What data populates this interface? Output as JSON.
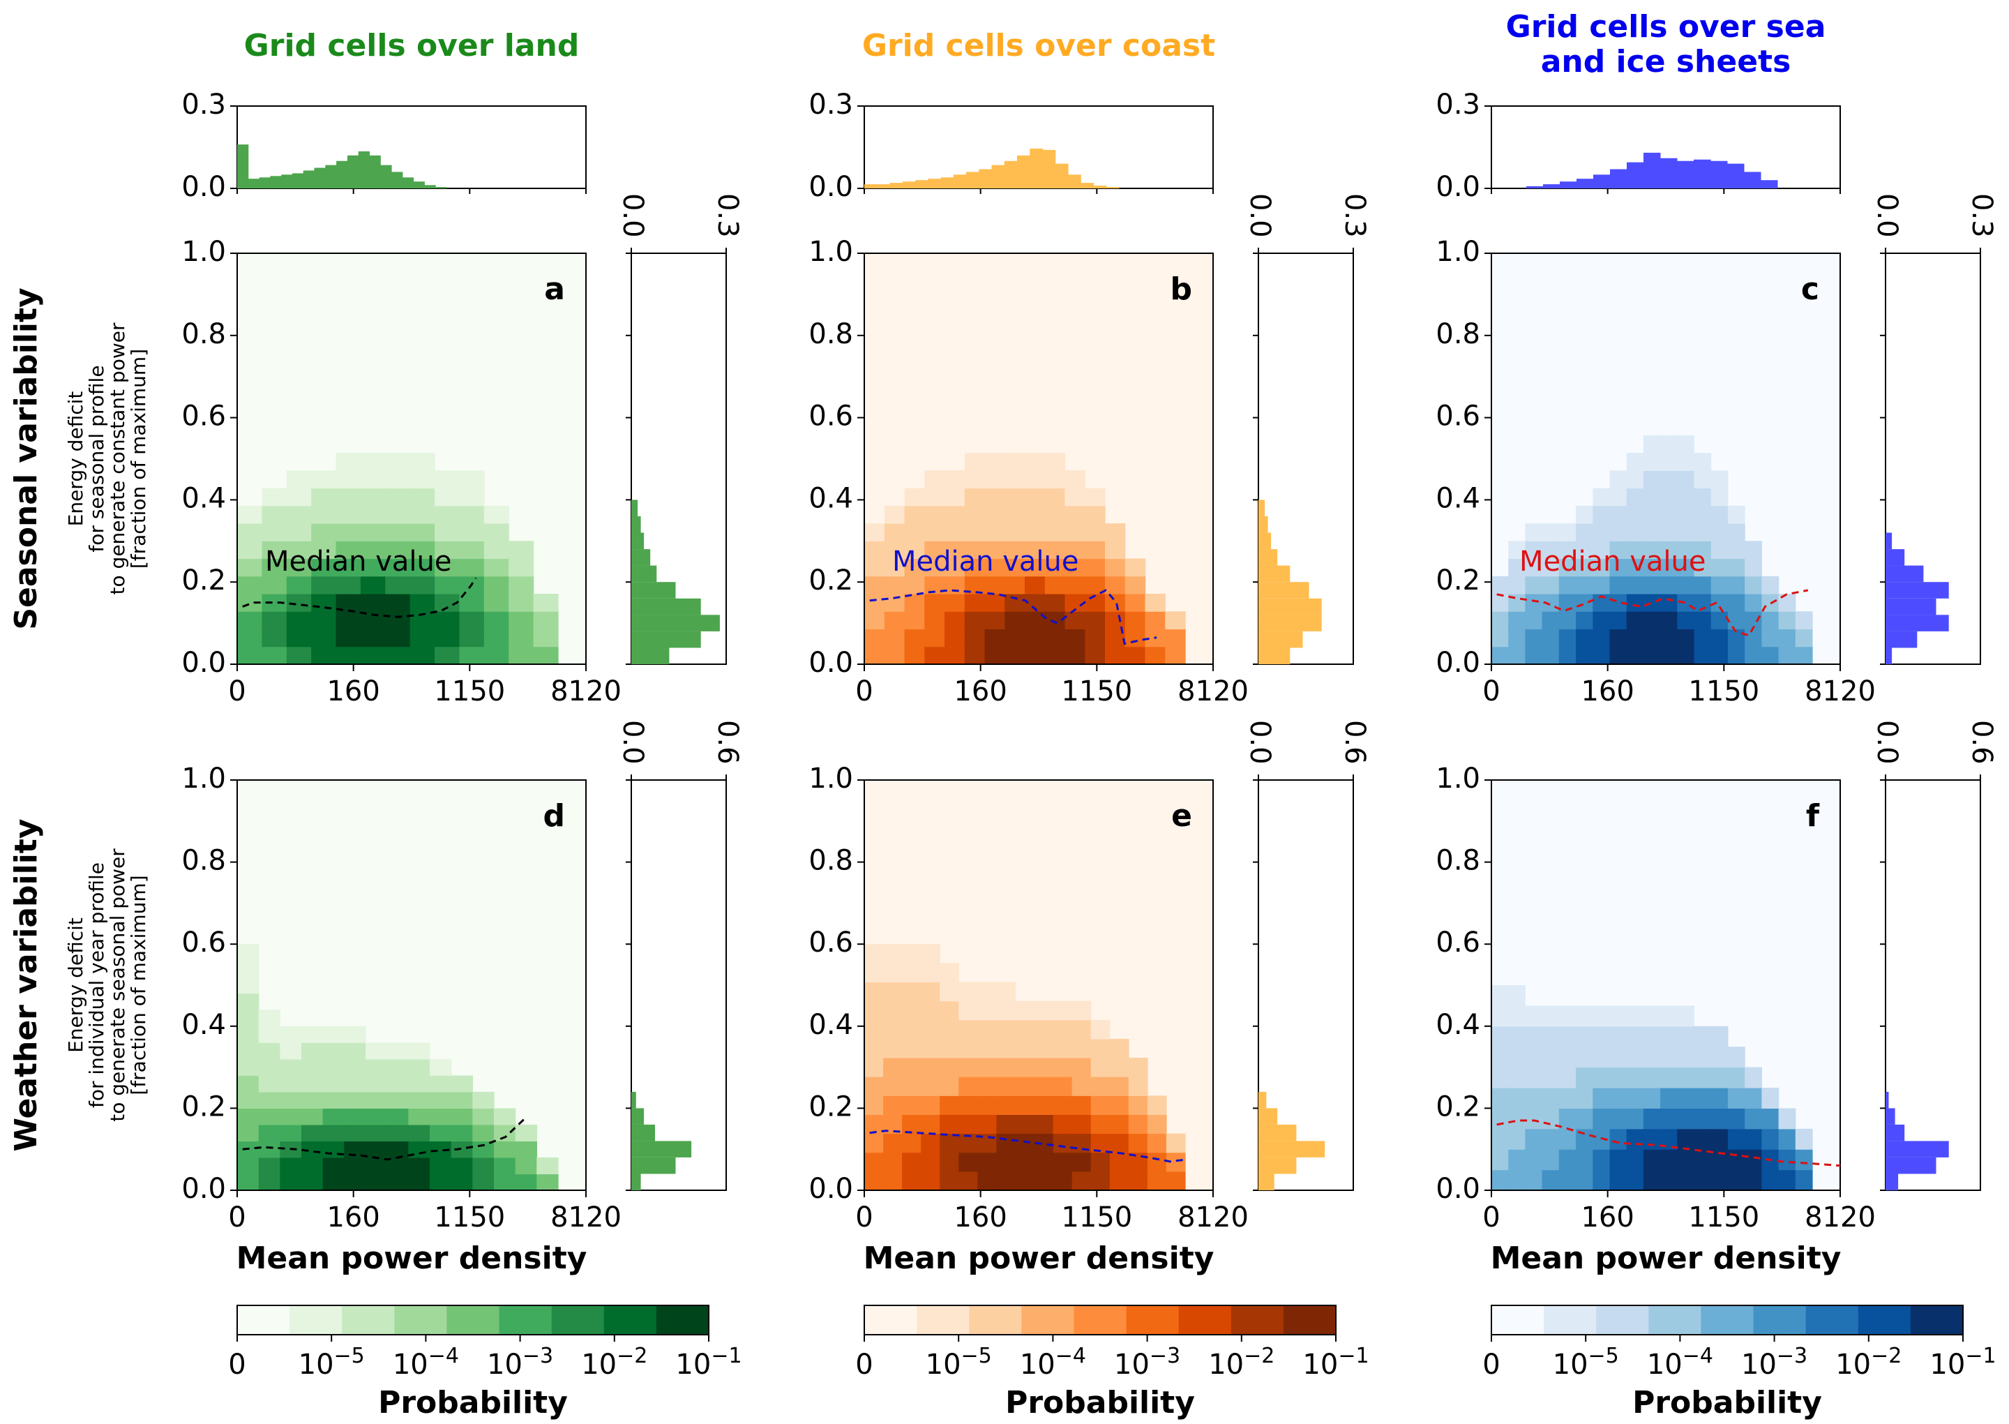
{
  "chart_data": {
    "type": "heatmap",
    "column_titles": [
      {
        "lines": [
          "Grid cells over land"
        ],
        "color": "#1a8a1a"
      },
      {
        "lines": [
          "Grid cells over coast"
        ],
        "color": "#ffaa22"
      },
      {
        "lines": [
          "Grid cells over sea",
          "and ice sheets"
        ],
        "color": "#0000ee"
      }
    ],
    "row_titles": [
      "Seasonal variability",
      "Weather variability"
    ],
    "row_ylabels": [
      [
        "Energy deficit",
        "for seasonal profile",
        "to generate constant power",
        "[fraction of maximum]"
      ],
      [
        "Energy deficit",
        "for individual year profile",
        "to generate seasonal power",
        "[fraction of maximum]"
      ]
    ],
    "xlabel": "Mean power density",
    "x_ticks": [
      "0",
      "160",
      "1150",
      "8120"
    ],
    "y_ticks": [
      "0.0",
      "0.2",
      "0.4",
      "0.6",
      "0.8",
      "1.0"
    ],
    "ylim": [
      0,
      1
    ],
    "top_hist_ticks": [
      "0.0",
      "0.3"
    ],
    "side_hist_ticks": [
      [
        "0.0",
        "0.3"
      ],
      [
        "0.0",
        "0.6"
      ]
    ],
    "panel_labels": [
      "a",
      "b",
      "c",
      "d",
      "e",
      "f"
    ],
    "median_label": "Median value",
    "colorbar": {
      "label": "Probability",
      "tick_labels": [
        {
          "base": "0",
          "exp": ""
        },
        {
          "base": "10",
          "exp": "−5"
        },
        {
          "base": "10",
          "exp": "−4"
        },
        {
          "base": "10",
          "exp": "−3"
        },
        {
          "base": "10",
          "exp": "−2"
        },
        {
          "base": "10",
          "exp": "−1"
        }
      ],
      "palettes": [
        [
          "#f7fcf5",
          "#e5f5e0",
          "#c7e9c0",
          "#a1d99b",
          "#74c476",
          "#41ab5d",
          "#238b45",
          "#006d2c",
          "#00441b"
        ],
        [
          "#fff5eb",
          "#fee6ce",
          "#fdd0a2",
          "#fdae6b",
          "#fd8d3c",
          "#f16913",
          "#d94801",
          "#a63603",
          "#7f2704"
        ],
        [
          "#f7fbff",
          "#deebf7",
          "#c6dbef",
          "#9ecae1",
          "#6baed6",
          "#4292c6",
          "#2171b5",
          "#08519c",
          "#08306b"
        ]
      ]
    },
    "hist_colors": [
      "#4da54d",
      "#ffbd4f",
      "#4d4dff"
    ],
    "median_colors": [
      "#000000",
      "#1010cc",
      "#dd1111"
    ],
    "top_histograms": [
      [
        0.16,
        0.035,
        0.04,
        0.045,
        0.05,
        0.055,
        0.065,
        0.075,
        0.085,
        0.1,
        0.12,
        0.135,
        0.12,
        0.085,
        0.06,
        0.04,
        0.025,
        0.012,
        0.005
      ],
      [
        0.015,
        0.015,
        0.02,
        0.025,
        0.03,
        0.035,
        0.04,
        0.05,
        0.06,
        0.07,
        0.085,
        0.1,
        0.12,
        0.145,
        0.14,
        0.09,
        0.05,
        0.02,
        0.01,
        0.005
      ],
      [
        0.008,
        0.015,
        0.025,
        0.035,
        0.05,
        0.07,
        0.095,
        0.13,
        0.11,
        0.1,
        0.105,
        0.1,
        0.09,
        0.06,
        0.03
      ]
    ],
    "side_histograms": [
      [
        [
          [
            0.0,
            0.04,
            0.12
          ],
          [
            0.04,
            0.08,
            0.22
          ],
          [
            0.08,
            0.12,
            0.28
          ],
          [
            0.12,
            0.16,
            0.22
          ],
          [
            0.16,
            0.2,
            0.14
          ],
          [
            0.2,
            0.24,
            0.08
          ],
          [
            0.24,
            0.28,
            0.06
          ],
          [
            0.28,
            0.32,
            0.04
          ],
          [
            0.32,
            0.36,
            0.03
          ],
          [
            0.36,
            0.4,
            0.02
          ]
        ],
        [
          [
            0.0,
            0.04,
            0.1
          ],
          [
            0.04,
            0.08,
            0.14
          ],
          [
            0.08,
            0.12,
            0.2
          ],
          [
            0.12,
            0.16,
            0.2
          ],
          [
            0.16,
            0.2,
            0.16
          ],
          [
            0.2,
            0.24,
            0.1
          ],
          [
            0.24,
            0.28,
            0.06
          ],
          [
            0.28,
            0.32,
            0.04
          ],
          [
            0.32,
            0.36,
            0.03
          ],
          [
            0.36,
            0.4,
            0.02
          ]
        ],
        [
          [
            0.0,
            0.04,
            0.02
          ],
          [
            0.04,
            0.08,
            0.1
          ],
          [
            0.08,
            0.12,
            0.2
          ],
          [
            0.12,
            0.16,
            0.16
          ],
          [
            0.16,
            0.2,
            0.2
          ],
          [
            0.2,
            0.24,
            0.12
          ],
          [
            0.24,
            0.28,
            0.06
          ],
          [
            0.28,
            0.32,
            0.02
          ]
        ]
      ],
      [
        [
          [
            0.0,
            0.04,
            0.06
          ],
          [
            0.04,
            0.08,
            0.28
          ],
          [
            0.08,
            0.12,
            0.38
          ],
          [
            0.12,
            0.16,
            0.15
          ],
          [
            0.16,
            0.2,
            0.08
          ],
          [
            0.2,
            0.24,
            0.03
          ]
        ],
        [
          [
            0.0,
            0.04,
            0.1
          ],
          [
            0.04,
            0.08,
            0.24
          ],
          [
            0.08,
            0.12,
            0.42
          ],
          [
            0.12,
            0.16,
            0.24
          ],
          [
            0.16,
            0.2,
            0.12
          ],
          [
            0.2,
            0.24,
            0.05
          ]
        ],
        [
          [
            0.0,
            0.04,
            0.08
          ],
          [
            0.04,
            0.08,
            0.32
          ],
          [
            0.08,
            0.12,
            0.4
          ],
          [
            0.12,
            0.16,
            0.12
          ],
          [
            0.16,
            0.2,
            0.06
          ],
          [
            0.2,
            0.24,
            0.02
          ]
        ]
      ]
    ],
    "medians": [
      [
        [
          [
            0.1,
            0.14
          ],
          [
            0.3,
            0.15
          ],
          [
            0.8,
            0.15
          ],
          [
            1.5,
            0.14
          ],
          [
            2.1,
            0.13
          ],
          [
            2.55,
            0.12
          ],
          [
            3.0,
            0.115
          ],
          [
            3.4,
            0.12
          ],
          [
            3.8,
            0.13
          ],
          [
            4.1,
            0.15
          ],
          [
            4.35,
            0.19
          ],
          [
            4.45,
            0.21
          ]
        ],
        [
          [
            0.1,
            0.155
          ],
          [
            0.5,
            0.16
          ],
          [
            1.2,
            0.175
          ],
          [
            1.6,
            0.18
          ],
          [
            2.1,
            0.175
          ],
          [
            2.5,
            0.17
          ],
          [
            3.0,
            0.155
          ],
          [
            3.4,
            0.11
          ],
          [
            3.6,
            0.1
          ],
          [
            3.9,
            0.13
          ],
          [
            4.2,
            0.16
          ],
          [
            4.5,
            0.18
          ],
          [
            4.7,
            0.15
          ],
          [
            4.85,
            0.05
          ],
          [
            5.2,
            0.06
          ],
          [
            5.45,
            0.065
          ]
        ],
        [
          [
            0.1,
            0.17
          ],
          [
            0.5,
            0.16
          ],
          [
            1.0,
            0.15
          ],
          [
            1.35,
            0.13
          ],
          [
            1.7,
            0.145
          ],
          [
            2.05,
            0.165
          ],
          [
            2.4,
            0.15
          ],
          [
            2.8,
            0.14
          ],
          [
            3.2,
            0.16
          ],
          [
            3.6,
            0.15
          ],
          [
            3.85,
            0.13
          ],
          [
            4.2,
            0.15
          ],
          [
            4.55,
            0.08
          ],
          [
            4.8,
            0.07
          ],
          [
            5.1,
            0.14
          ],
          [
            5.5,
            0.17
          ],
          [
            5.9,
            0.18
          ]
        ]
      ],
      [
        [
          [
            0.1,
            0.1
          ],
          [
            0.5,
            0.105
          ],
          [
            1.1,
            0.1
          ],
          [
            1.7,
            0.09
          ],
          [
            2.3,
            0.085
          ],
          [
            2.8,
            0.075
          ],
          [
            3.2,
            0.085
          ],
          [
            3.6,
            0.095
          ],
          [
            4.1,
            0.1
          ],
          [
            4.6,
            0.11
          ],
          [
            5.0,
            0.13
          ],
          [
            5.4,
            0.18
          ]
        ],
        [
          [
            0.1,
            0.14
          ],
          [
            0.4,
            0.145
          ],
          [
            1.0,
            0.14
          ],
          [
            1.6,
            0.135
          ],
          [
            2.3,
            0.13
          ],
          [
            2.9,
            0.12
          ],
          [
            3.5,
            0.11
          ],
          [
            4.1,
            0.1
          ],
          [
            4.8,
            0.09
          ],
          [
            5.3,
            0.08
          ],
          [
            5.7,
            0.07
          ],
          [
            6.0,
            0.075
          ]
        ],
        [
          [
            0.1,
            0.16
          ],
          [
            0.5,
            0.17
          ],
          [
            0.8,
            0.17
          ],
          [
            1.3,
            0.155
          ],
          [
            1.8,
            0.135
          ],
          [
            2.4,
            0.115
          ],
          [
            3.1,
            0.11
          ],
          [
            3.7,
            0.1
          ],
          [
            4.3,
            0.09
          ],
          [
            4.9,
            0.08
          ],
          [
            5.4,
            0.07
          ],
          [
            6.0,
            0.065
          ],
          [
            6.5,
            0.06
          ]
        ]
      ]
    ],
    "heatmap_regions": [
      [
        {
          "x_bins": 13,
          "y_bins": 14,
          "peak_x": 5,
          "peak_y": 2,
          "sx": 3.5,
          "sy": 2.6,
          "boundary": [
            [
              0,
              9
            ],
            [
              1,
              10
            ],
            [
              2,
              11
            ],
            [
              3,
              11
            ],
            [
              4,
              12
            ],
            [
              5,
              12
            ],
            [
              6,
              12
            ],
            [
              7,
              12
            ],
            [
              8,
              11
            ],
            [
              9,
              11
            ],
            [
              10,
              9
            ],
            [
              11,
              7
            ],
            [
              12,
              4
            ]
          ]
        },
        {
          "x_bins": 16,
          "y_bins": 14,
          "peak_x": 8,
          "peak_y": 1,
          "sx": 4.0,
          "sy": 2.8,
          "boundary": [
            [
              0,
              8
            ],
            [
              1,
              9
            ],
            [
              2,
              10
            ],
            [
              3,
              11
            ],
            [
              4,
              11
            ],
            [
              5,
              12
            ],
            [
              6,
              12
            ],
            [
              7,
              12
            ],
            [
              8,
              12
            ],
            [
              9,
              12
            ],
            [
              10,
              11
            ],
            [
              11,
              10
            ],
            [
              12,
              8
            ],
            [
              13,
              6
            ],
            [
              14,
              4
            ],
            [
              15,
              3
            ]
          ]
        },
        {
          "x_bins": 19,
          "y_bins": 14,
          "peak_x": 9,
          "peak_y": 1,
          "sx": 4.5,
          "sy": 2.5,
          "boundary": [
            [
              0,
              5
            ],
            [
              1,
              7
            ],
            [
              2,
              8
            ],
            [
              3,
              8
            ],
            [
              4,
              8
            ],
            [
              5,
              9
            ],
            [
              6,
              10
            ],
            [
              7,
              11
            ],
            [
              8,
              12
            ],
            [
              9,
              13
            ],
            [
              10,
              13
            ],
            [
              11,
              13
            ],
            [
              12,
              12
            ],
            [
              13,
              11
            ],
            [
              14,
              9
            ],
            [
              15,
              7
            ],
            [
              16,
              5
            ],
            [
              17,
              4
            ],
            [
              18,
              3
            ]
          ]
        }
      ],
      [
        {
          "x_bins": 15,
          "y_bins": 15,
          "peak_x": 6,
          "peak_y": 1,
          "sx": 4.5,
          "sy": 2.4,
          "boundary": [
            [
              0,
              15
            ],
            [
              1,
              11
            ],
            [
              2,
              10
            ],
            [
              3,
              10
            ],
            [
              4,
              10
            ],
            [
              5,
              10
            ],
            [
              6,
              9
            ],
            [
              7,
              9
            ],
            [
              8,
              9
            ],
            [
              9,
              8
            ],
            [
              10,
              7
            ],
            [
              11,
              6
            ],
            [
              12,
              5
            ],
            [
              13,
              4
            ],
            [
              14,
              2
            ]
          ]
        },
        {
          "x_bins": 17,
          "y_bins": 13,
          "peak_x": 8,
          "peak_y": 1,
          "sx": 5.0,
          "sy": 2.6,
          "boundary": [
            [
              0,
              13
            ],
            [
              1,
              13
            ],
            [
              2,
              13
            ],
            [
              3,
              13
            ],
            [
              4,
              12
            ],
            [
              5,
              11
            ],
            [
              6,
              11
            ],
            [
              7,
              11
            ],
            [
              8,
              10
            ],
            [
              9,
              10
            ],
            [
              10,
              10
            ],
            [
              11,
              10
            ],
            [
              12,
              9
            ],
            [
              13,
              8
            ],
            [
              14,
              7
            ],
            [
              15,
              5
            ],
            [
              16,
              3
            ]
          ]
        },
        {
          "x_bins": 19,
          "y_bins": 12,
          "peak_x": 12,
          "peak_y": 1,
          "sx": 5.5,
          "sy": 2.4,
          "boundary": [
            [
              0,
              10
            ],
            [
              1,
              10
            ],
            [
              2,
              9
            ],
            [
              3,
              9
            ],
            [
              4,
              9
            ],
            [
              5,
              9
            ],
            [
              6,
              9
            ],
            [
              7,
              9
            ],
            [
              8,
              9
            ],
            [
              9,
              9
            ],
            [
              10,
              9
            ],
            [
              11,
              9
            ],
            [
              12,
              8
            ],
            [
              13,
              8
            ],
            [
              14,
              7
            ],
            [
              15,
              6
            ],
            [
              16,
              5
            ],
            [
              17,
              4
            ],
            [
              18,
              3
            ]
          ]
        }
      ]
    ]
  }
}
